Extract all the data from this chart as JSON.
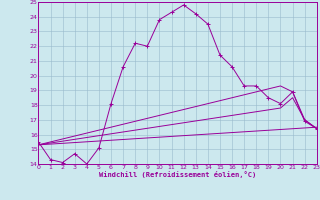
{
  "xlabel": "Windchill (Refroidissement éolien,°C)",
  "bg_color": "#cce8ee",
  "line_color": "#990099",
  "grid_color": "#99bbcc",
  "ylim": [
    14,
    25
  ],
  "xlim": [
    0,
    23
  ],
  "yticks": [
    14,
    15,
    16,
    17,
    18,
    19,
    20,
    21,
    22,
    23,
    24,
    25
  ],
  "xticks": [
    0,
    1,
    2,
    3,
    4,
    5,
    6,
    7,
    8,
    9,
    10,
    11,
    12,
    13,
    14,
    15,
    16,
    17,
    18,
    19,
    20,
    21,
    22,
    23
  ],
  "line1_x": [
    0,
    1,
    2,
    3,
    4,
    5,
    6,
    7,
    8,
    9,
    10,
    11,
    12,
    13,
    14,
    15,
    16,
    17,
    18,
    19,
    20,
    21,
    22,
    23
  ],
  "line1_y": [
    15.5,
    14.3,
    14.1,
    14.7,
    14.0,
    15.1,
    18.1,
    20.6,
    22.2,
    22.0,
    23.8,
    24.3,
    24.8,
    24.2,
    23.5,
    21.4,
    20.6,
    19.3,
    19.3,
    18.5,
    18.1,
    18.9,
    16.9,
    16.4
  ],
  "line2_x": [
    0,
    23
  ],
  "line2_y": [
    15.3,
    16.5
  ],
  "line3_x": [
    0,
    20,
    21,
    22,
    23
  ],
  "line3_y": [
    15.3,
    17.8,
    18.5,
    17.0,
    16.4
  ],
  "line4_x": [
    0,
    20,
    21,
    22,
    23
  ],
  "line4_y": [
    15.3,
    19.3,
    18.9,
    17.0,
    16.4
  ]
}
